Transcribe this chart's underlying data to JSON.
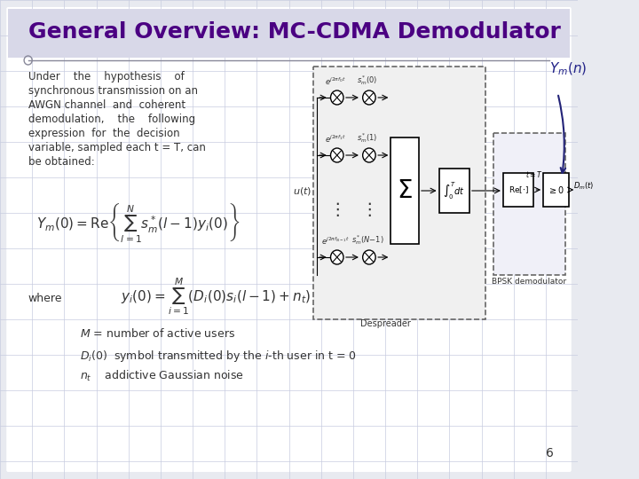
{
  "bg_color": "#e8eaf0",
  "slide_bg": "#ffffff",
  "title": "General Overview: MC-CDMA Demodulator",
  "title_color": "#4B0082",
  "title_fontsize": 18,
  "title_bold": true,
  "body_text_color": "#333333",
  "body_fontsize": 9,
  "formula_color": "#333333",
  "accent_color": "#4B0082",
  "grid_color": "#c8cce0",
  "page_number": "6",
  "paragraph_text": "Under    the    hypothesis    of\nsynchronous transmission on an\nAWGN channel  and  coherent\ndemodulation,    the    following\nexpression  for  the  decision\nvariable, sampled each t = T, can\nbe obtained:",
  "where_label": "where"
}
